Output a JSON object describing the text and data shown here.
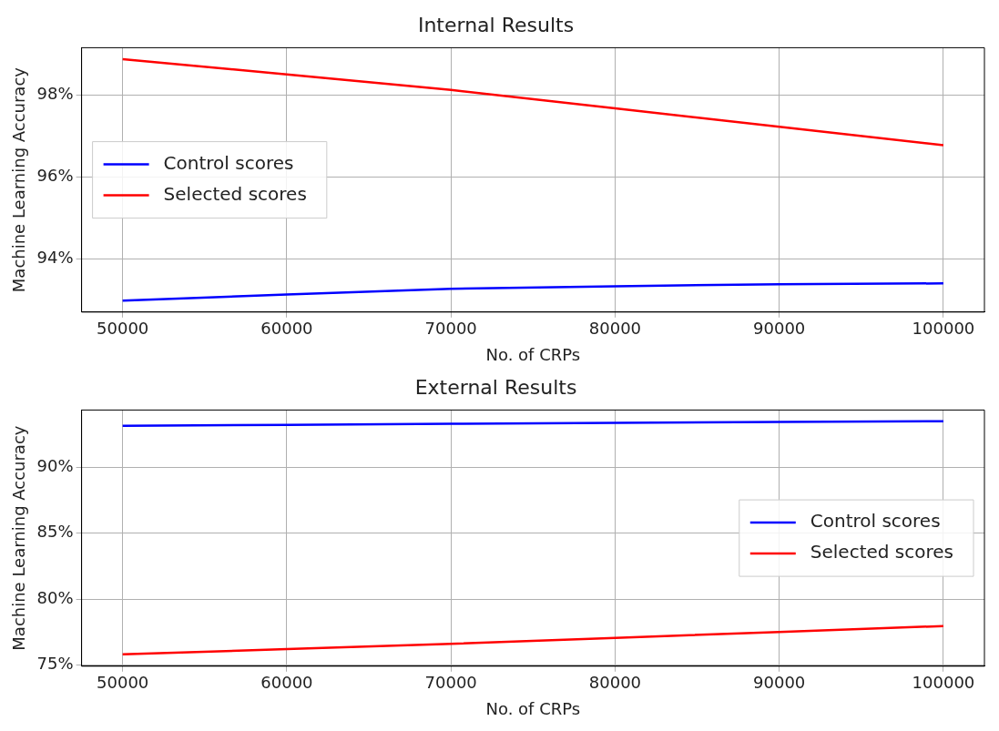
{
  "chart_data": [
    {
      "type": "line",
      "title": "Internal Results",
      "xlabel": "No. of CRPs",
      "ylabel": "Machine Learning Accuracy",
      "x": [
        50000,
        60000,
        70000,
        80000,
        90000,
        100000
      ],
      "series": [
        {
          "name": "Control scores",
          "color": "#0000ff",
          "values": [
            92.98,
            93.13,
            93.27,
            93.33,
            93.38,
            93.4
          ]
        },
        {
          "name": "Selected scores",
          "color": "#ff0000",
          "values": [
            98.87,
            98.5,
            98.12,
            97.67,
            97.22,
            96.77
          ]
        }
      ],
      "xlim": [
        47500,
        102500
      ],
      "xticks": [
        50000,
        60000,
        70000,
        80000,
        90000,
        100000
      ],
      "ylim": [
        92.7,
        99.15
      ],
      "yticks": [
        {
          "value": 94,
          "label": "94%"
        },
        {
          "value": 96,
          "label": "96%"
        },
        {
          "value": 98,
          "label": "98%"
        }
      ],
      "grid": true,
      "legend": "left",
      "marker": "none",
      "line_style": "solid"
    },
    {
      "type": "line",
      "title": "External Results",
      "xlabel": "No. of CRPs",
      "ylabel": "Machine Learning Accuracy",
      "x": [
        50000,
        60000,
        70000,
        80000,
        90000,
        100000
      ],
      "series": [
        {
          "name": "Control scores",
          "color": "#0000ff",
          "values": [
            93.15,
            93.22,
            93.3,
            93.38,
            93.45,
            93.5
          ]
        },
        {
          "name": "Selected scores",
          "color": "#ff0000",
          "values": [
            75.8,
            76.2,
            76.6,
            77.05,
            77.5,
            77.95
          ]
        }
      ],
      "xlim": [
        47500,
        102500
      ],
      "xticks": [
        50000,
        60000,
        70000,
        80000,
        90000,
        100000
      ],
      "ylim": [
        74.9,
        94.35
      ],
      "yticks": [
        {
          "value": 75,
          "label": "75%"
        },
        {
          "value": 80,
          "label": "80%"
        },
        {
          "value": 85,
          "label": "85%"
        },
        {
          "value": 90,
          "label": "90%"
        }
      ],
      "grid": true,
      "legend": "right",
      "marker": "none",
      "line_style": "solid"
    }
  ]
}
